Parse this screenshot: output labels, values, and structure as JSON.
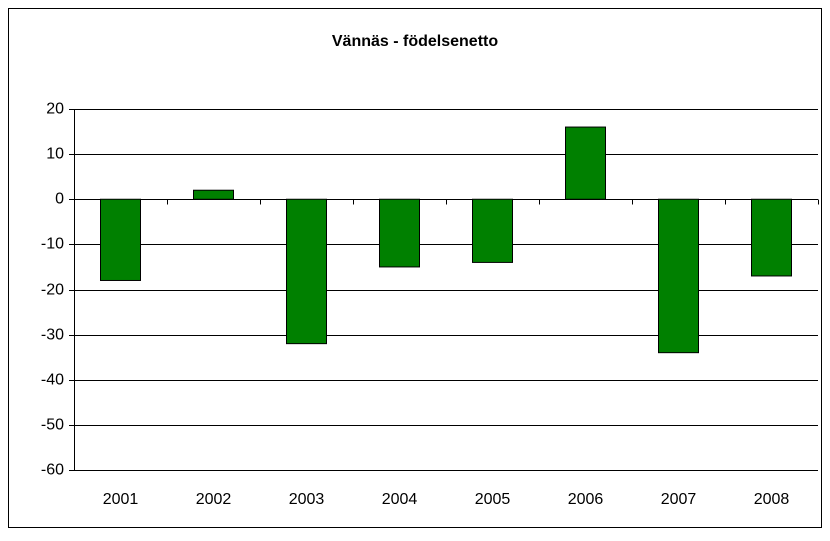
{
  "chart_data": {
    "type": "bar",
    "title": "Vännäs - födelsenetto",
    "categories": [
      "2001",
      "2002",
      "2003",
      "2004",
      "2005",
      "2006",
      "2007",
      "2008"
    ],
    "values": [
      -18,
      2,
      -32,
      -15,
      -14,
      16,
      -34,
      -17
    ],
    "color": "#008000",
    "ylim": [
      -60,
      20
    ],
    "yticks": [
      -60,
      -50,
      -40,
      -30,
      -20,
      -10,
      0,
      10,
      20
    ],
    "grid": true
  }
}
